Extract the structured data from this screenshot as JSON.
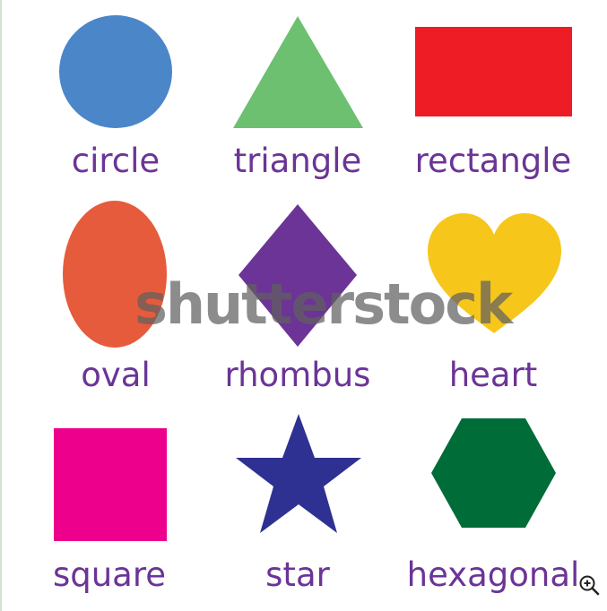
{
  "labels": {
    "circle": "circle",
    "triangle": "triangle",
    "rectangle": "rectangle",
    "oval": "oval",
    "rhombus": "rhombus",
    "heart": "heart",
    "square": "square",
    "star": "star",
    "hexagonal": "hexagonal"
  },
  "colors": {
    "circle": "#4b86c8",
    "triangle": "#6cc06f",
    "rectangle": "#ee1c25",
    "oval": "#e55b3c",
    "rhombus": "#6b3496",
    "heart": "#f7c61b",
    "square": "#ec008c",
    "star": "#2e3191",
    "hexagonal": "#006c38",
    "label_text": "#6b3496",
    "watermark": "#5f5f5f"
  },
  "watermark": {
    "text": "shutterstock"
  },
  "zoom": {
    "icon": "zoom-in-icon"
  }
}
